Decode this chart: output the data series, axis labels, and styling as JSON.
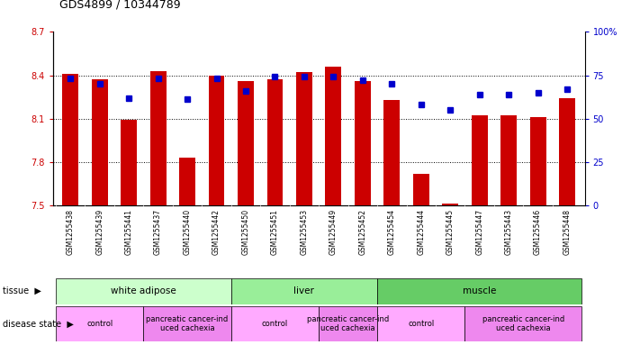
{
  "title": "GDS4899 / 10344789",
  "samples": [
    "GSM1255438",
    "GSM1255439",
    "GSM1255441",
    "GSM1255437",
    "GSM1255440",
    "GSM1255442",
    "GSM1255450",
    "GSM1255451",
    "GSM1255453",
    "GSM1255449",
    "GSM1255452",
    "GSM1255454",
    "GSM1255444",
    "GSM1255445",
    "GSM1255447",
    "GSM1255443",
    "GSM1255446",
    "GSM1255448"
  ],
  "transformed_count": [
    8.41,
    8.37,
    8.09,
    8.43,
    7.83,
    8.4,
    8.36,
    8.37,
    8.42,
    8.46,
    8.36,
    8.23,
    7.72,
    7.51,
    8.12,
    8.12,
    8.11,
    8.24
  ],
  "percentile_rank": [
    73,
    70,
    62,
    73,
    61,
    73,
    66,
    74,
    74,
    74,
    72,
    70,
    58,
    55,
    64,
    64,
    65,
    67
  ],
  "ymin": 7.5,
  "ymax": 8.7,
  "y2min": 0,
  "y2max": 100,
  "yticks": [
    7.5,
    7.8,
    8.1,
    8.4,
    8.7
  ],
  "y2ticks": [
    0,
    25,
    50,
    75,
    100
  ],
  "bar_color": "#cc0000",
  "dot_color": "#0000cc",
  "bar_width": 0.55,
  "tissue_label_map": [
    [
      "white adipose",
      0,
      5,
      "#ccffcc"
    ],
    [
      "liver",
      6,
      10,
      "#99ee99"
    ],
    [
      "muscle",
      11,
      17,
      "#66cc66"
    ]
  ],
  "disease_label_map": [
    [
      "control",
      0,
      2,
      "#ffaaff"
    ],
    [
      "pancreatic cancer-ind\nuced cachexia",
      3,
      5,
      "#ee88ee"
    ],
    [
      "control",
      6,
      8,
      "#ffaaff"
    ],
    [
      "pancreatic cancer-ind\nuced cachexia",
      9,
      10,
      "#ee88ee"
    ],
    [
      "control",
      11,
      13,
      "#ffaaff"
    ],
    [
      "pancreatic cancer-ind\nuced cachexia",
      14,
      17,
      "#ee88ee"
    ]
  ],
  "background_color": "#ffffff",
  "grid_color": "#000000",
  "tick_color_left": "#cc0000",
  "tick_color_right": "#0000cc"
}
